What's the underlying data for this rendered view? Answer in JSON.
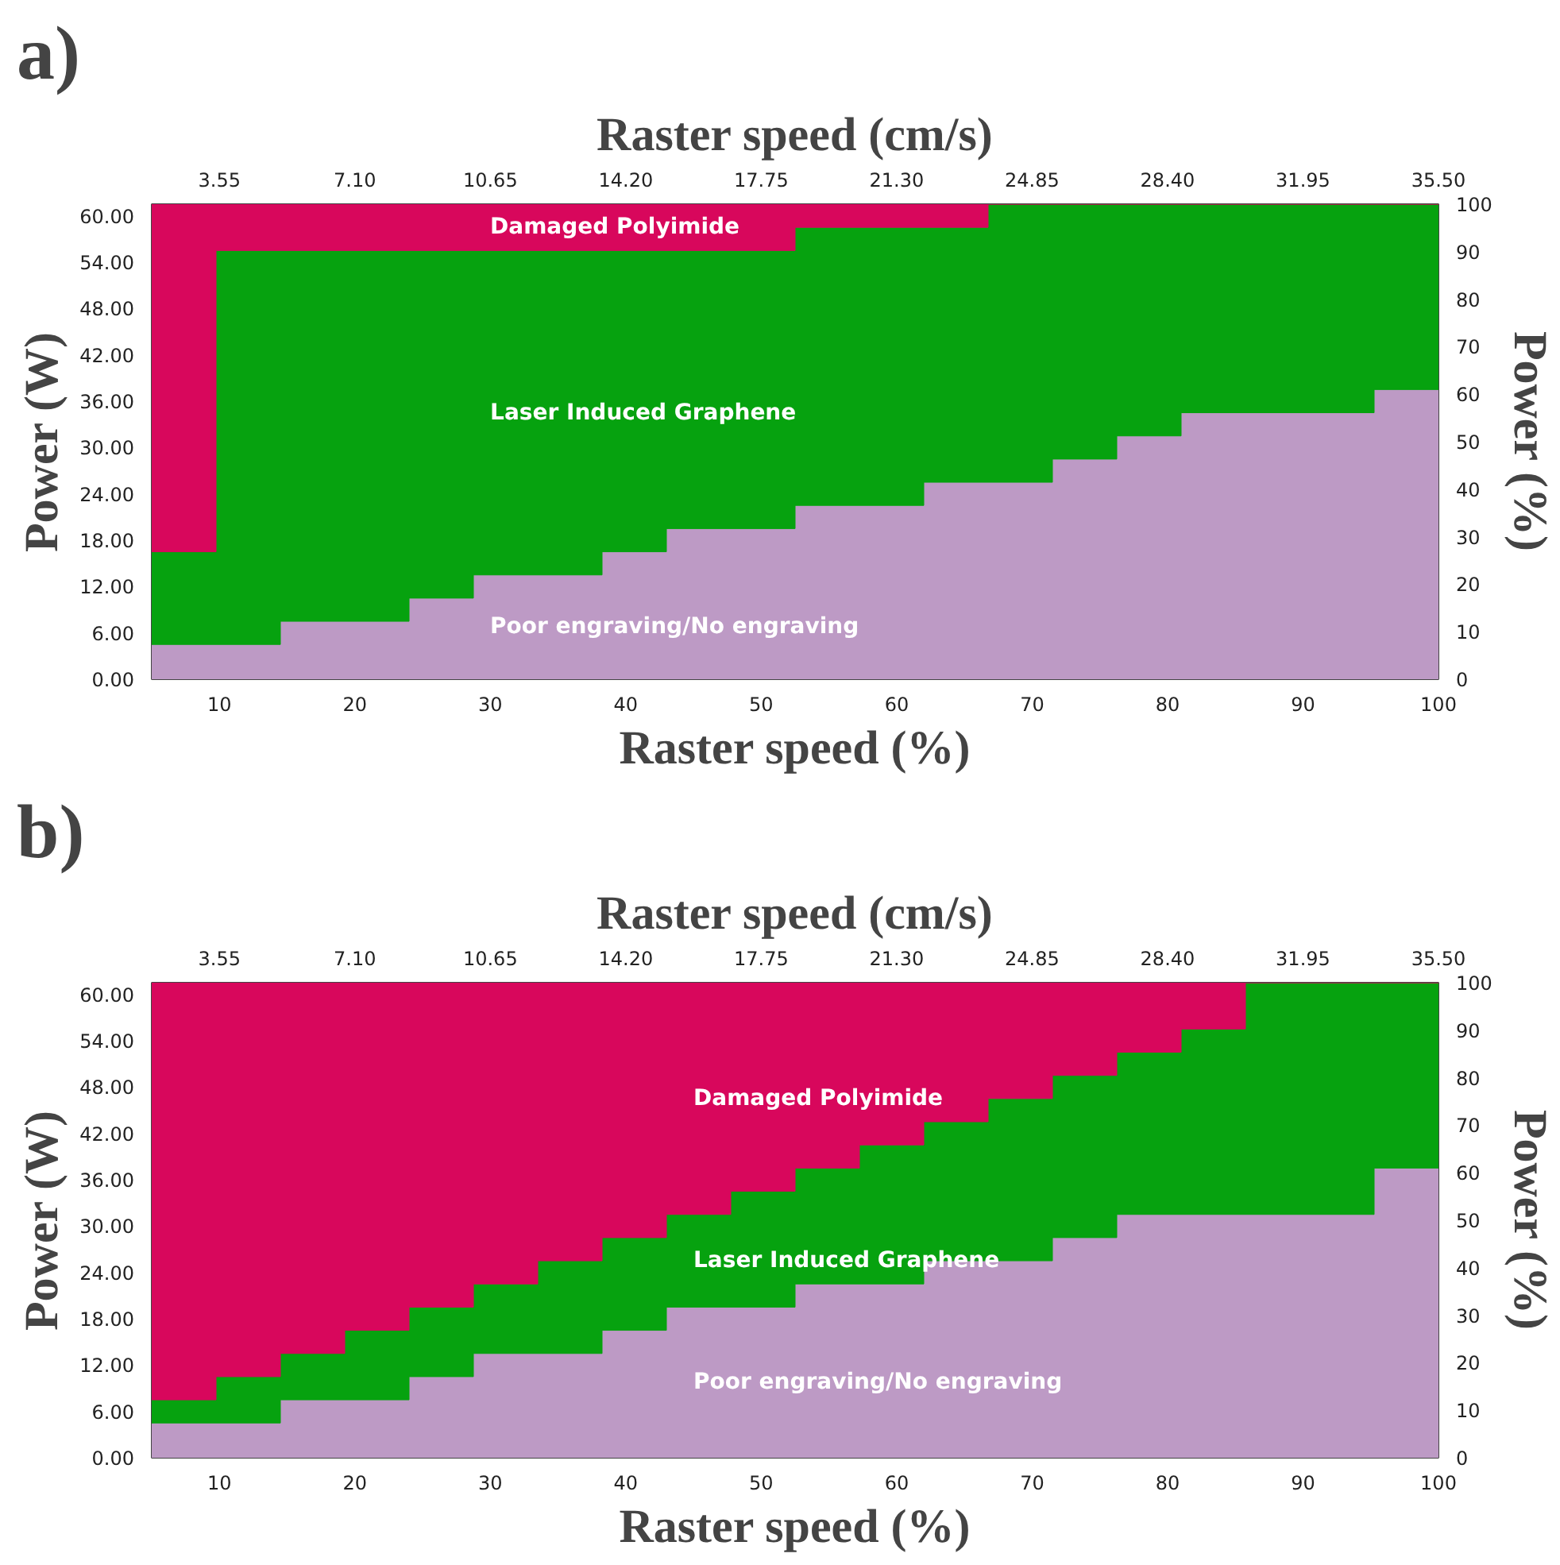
{
  "chart_data": [
    {
      "type": "area",
      "stacked": true,
      "title": "a)",
      "xlabel": "Raster speed (%)",
      "x2label": "Raster speed (cm/s)",
      "ylabel": "Power (W)",
      "y2label": "Power (%)",
      "x": [
        5,
        9.75,
        14.5,
        19.25,
        24,
        28.75,
        33.5,
        38.25,
        43,
        47.75,
        52.5,
        57.25,
        62,
        66.75,
        71.5,
        76.25,
        81,
        85.75,
        90.5,
        95.25,
        100
      ],
      "series": [
        {
          "color": "#bd9ac5",
          "values": [
            4.5,
            4.5,
            7.5,
            7.5,
            10.5,
            13.5,
            13.5,
            16.5,
            19.5,
            19.5,
            22.5,
            22.5,
            25.5,
            25.5,
            28.5,
            31.5,
            34.5,
            34.5,
            34.5,
            37.5,
            37.5
          ]
        },
        {
          "color": "#06a20f",
          "values": [
            12,
            51,
            48,
            48,
            45,
            42,
            42,
            39,
            36,
            36,
            36,
            36,
            33,
            36,
            33,
            30,
            27,
            27,
            27,
            24,
            24
          ]
        },
        {
          "color": "#d8075c",
          "values": [
            45,
            6,
            6,
            6,
            6,
            6,
            6,
            6,
            6,
            6,
            3,
            3,
            3,
            0,
            0,
            0,
            0,
            0,
            0,
            0,
            0
          ]
        }
      ],
      "annotations": [
        "Damaged Polyimide",
        "Laser Induced Graphene",
        "Poor engraving/No engraving"
      ],
      "xlim": [
        5,
        100
      ],
      "xticks": [
        10,
        20,
        30,
        40,
        50,
        60,
        70,
        80,
        90,
        100
      ],
      "x2lim": [
        1.775,
        35.5
      ],
      "x2ticks": [
        {
          "value": 3.55,
          "label": "3.55"
        },
        {
          "value": 7.1,
          "label": "7.10"
        },
        {
          "value": 10.65,
          "label": "10.65"
        },
        {
          "value": 14.2,
          "label": "14.20"
        },
        {
          "value": 17.75,
          "label": "17.75"
        },
        {
          "value": 21.3,
          "label": "21.30"
        },
        {
          "value": 24.85,
          "label": "24.85"
        },
        {
          "value": 28.4,
          "label": "28.40"
        },
        {
          "value": 31.95,
          "label": "31.95"
        },
        {
          "value": 35.5,
          "label": "35.50"
        }
      ],
      "ylim": [
        0,
        61.5
      ],
      "yticks": [
        {
          "value": 0,
          "label": "0.00"
        },
        {
          "value": 6,
          "label": "6.00"
        },
        {
          "value": 12,
          "label": "12.00"
        },
        {
          "value": 18,
          "label": "18.00"
        },
        {
          "value": 24,
          "label": "24.00"
        },
        {
          "value": 30,
          "label": "30.00"
        },
        {
          "value": 36,
          "label": "36.00"
        },
        {
          "value": 42,
          "label": "42.00"
        },
        {
          "value": 48,
          "label": "48.00"
        },
        {
          "value": 54,
          "label": "54.00"
        },
        {
          "value": 60,
          "label": "60.00"
        }
      ],
      "y2lim": [
        0,
        100
      ],
      "y2ticks": [
        0,
        10,
        20,
        30,
        40,
        50,
        60,
        70,
        80,
        90,
        100
      ]
    },
    {
      "type": "area",
      "stacked": true,
      "title": "b)",
      "xlabel": "Raster speed (%)",
      "x2label": "Raster speed (cm/s)",
      "ylabel": "Power (W)",
      "y2label": "Power (%)",
      "x": [
        5,
        9.75,
        14.5,
        19.25,
        24,
        28.75,
        33.5,
        38.25,
        43,
        47.75,
        52.5,
        57.25,
        62,
        66.75,
        71.5,
        76.25,
        81,
        85.75,
        90.5,
        95.25,
        100
      ],
      "series": [
        {
          "color": "#bd9ac5",
          "values": [
            4.5,
            4.5,
            7.5,
            7.5,
            10.5,
            13.5,
            13.5,
            16.5,
            19.5,
            19.5,
            22.5,
            22.5,
            25.5,
            25.5,
            28.5,
            31.5,
            31.5,
            31.5,
            31.5,
            37.5,
            37.5
          ]
        },
        {
          "color": "#06a20f",
          "values": [
            3,
            6,
            6,
            9,
            9,
            9,
            12,
            12,
            12,
            15,
            15,
            18,
            18,
            21,
            21,
            21,
            24,
            30,
            30,
            24,
            24
          ]
        },
        {
          "color": "#d8075c",
          "values": [
            54,
            51,
            48,
            45,
            42,
            39,
            36,
            33,
            30,
            27,
            24,
            21,
            18,
            15,
            12,
            9,
            6,
            0,
            0,
            0,
            0
          ]
        }
      ],
      "annotations": [
        "Damaged Polyimide",
        "Laser Induced Graphene",
        "Poor engraving/No engraving"
      ],
      "xlim": [
        5,
        100
      ],
      "xticks": [
        10,
        20,
        30,
        40,
        50,
        60,
        70,
        80,
        90,
        100
      ],
      "x2lim": [
        1.775,
        35.5
      ],
      "x2ticks": [
        {
          "value": 3.55,
          "label": "3.55"
        },
        {
          "value": 7.1,
          "label": "7.10"
        },
        {
          "value": 10.65,
          "label": "10.65"
        },
        {
          "value": 14.2,
          "label": "14.20"
        },
        {
          "value": 17.75,
          "label": "17.75"
        },
        {
          "value": 21.3,
          "label": "21.30"
        },
        {
          "value": 24.85,
          "label": "24.85"
        },
        {
          "value": 28.4,
          "label": "28.40"
        },
        {
          "value": 31.95,
          "label": "31.95"
        },
        {
          "value": 35.5,
          "label": "35.50"
        }
      ],
      "ylim": [
        0,
        61.5
      ],
      "yticks": [
        {
          "value": 0,
          "label": "0.00"
        },
        {
          "value": 6,
          "label": "6.00"
        },
        {
          "value": 12,
          "label": "12.00"
        },
        {
          "value": 18,
          "label": "18.00"
        },
        {
          "value": 24,
          "label": "24.00"
        },
        {
          "value": 30,
          "label": "30.00"
        },
        {
          "value": 36,
          "label": "36.00"
        },
        {
          "value": 42,
          "label": "42.00"
        },
        {
          "value": 48,
          "label": "48.00"
        },
        {
          "value": 54,
          "label": "54.00"
        },
        {
          "value": 60,
          "label": "60.00"
        }
      ],
      "y2lim": [
        0,
        100
      ],
      "y2ticks": [
        0,
        10,
        20,
        30,
        40,
        50,
        60,
        70,
        80,
        90,
        100
      ]
    }
  ]
}
